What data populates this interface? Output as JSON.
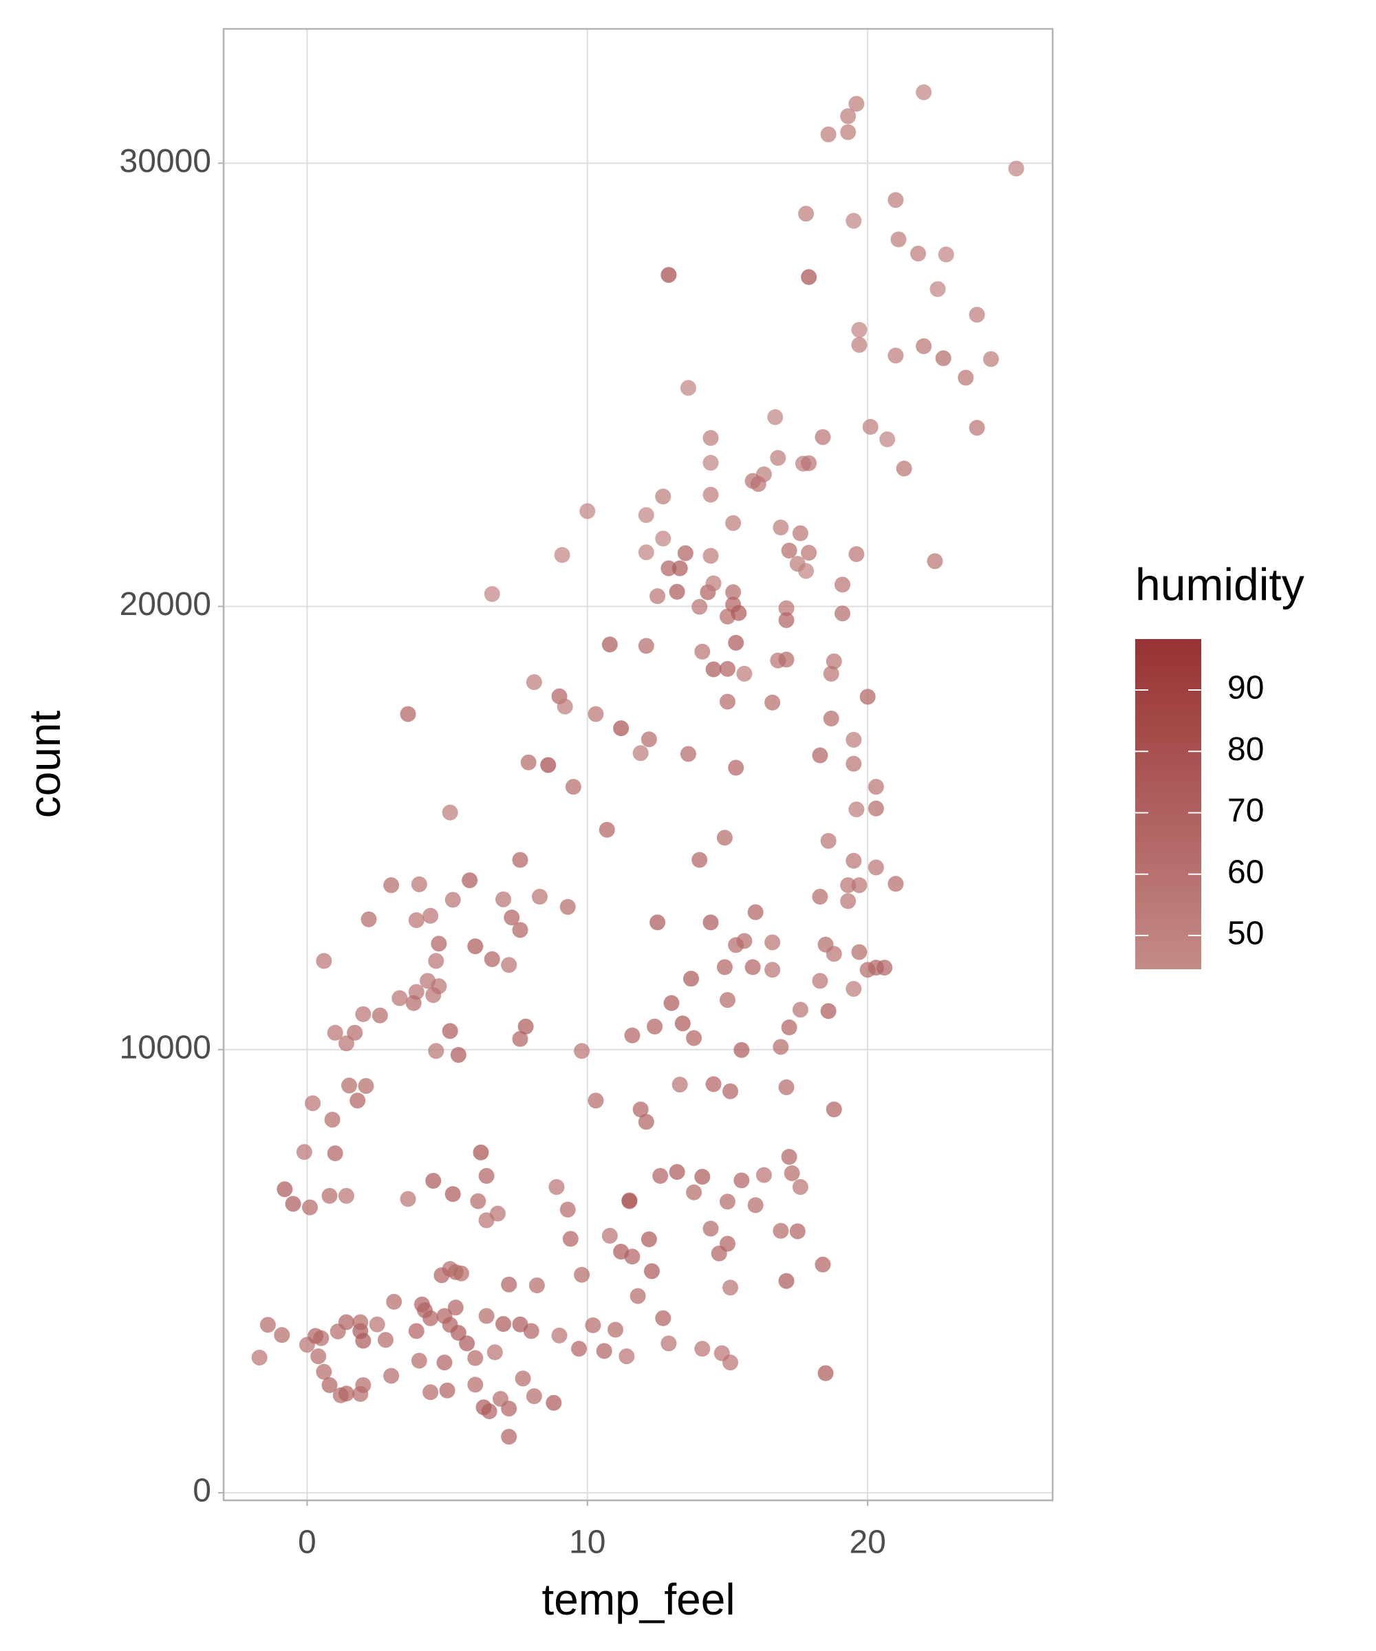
{
  "chart_data": {
    "type": "scatter",
    "x_label": "temp_feel",
    "y_label": "count",
    "xlim": [
      -2.98,
      26.6
    ],
    "ylim": [
      -170,
      33030
    ],
    "xticks": [
      0,
      10,
      20
    ],
    "yticks": [
      0,
      10000,
      20000,
      30000
    ],
    "grid": true,
    "x": [
      22.0,
      19.6,
      19.3,
      19.3,
      18.6,
      25.3,
      21.0,
      19.5,
      17.8,
      21.1,
      22.8,
      21.8,
      12.9,
      17.9,
      22.5,
      23.9,
      19.7,
      19.7,
      21.0,
      22.0,
      22.7,
      24.4,
      23.5,
      13.6,
      16.7,
      20.1,
      14.4,
      18.4,
      20.7,
      23.9,
      16.8,
      17.7,
      17.9,
      14.4,
      21.3,
      16.3,
      15.9,
      16.1,
      14.4,
      12.7,
      10.0,
      12.1,
      15.2,
      16.9,
      17.6,
      12.7,
      12.1,
      9.1,
      13.5,
      14.4,
      17.2,
      17.9,
      19.6,
      22.4,
      12.9,
      13.3,
      17.5,
      17.8,
      12.5,
      13.2,
      14.3,
      14.5,
      15.2,
      15.2,
      6.6,
      19.1,
      14.0,
      17.1,
      15.0,
      15.4,
      17.1,
      19.1,
      10.8,
      12.1,
      15.3,
      14.1,
      16.8,
      17.1,
      14.5,
      15.0,
      15.6,
      18.8,
      18.7,
      8.1,
      9.0,
      9.2,
      15.0,
      16.6,
      20.0,
      3.6,
      10.3,
      11.2,
      12.2,
      18.7,
      19.5,
      11.9,
      13.6,
      18.3,
      19.5,
      7.9,
      8.6,
      15.3,
      9.5,
      20.3,
      5.1,
      19.6,
      20.3,
      10.7,
      14.9,
      18.6,
      19.5,
      20.3,
      7.6,
      14.0,
      5.8,
      3.0,
      4.0,
      8.3,
      21.0,
      19.3,
      19.7,
      18.3,
      19.3,
      5.2,
      7.0,
      9.3,
      4.4,
      2.2,
      3.9,
      7.3,
      12.5,
      14.4,
      16.0,
      7.6,
      6.0,
      4.7,
      18.5,
      15.3,
      15.6,
      16.6,
      19.7,
      4.6,
      6.6,
      18.8,
      7.2,
      14.9,
      15.9,
      16.6,
      20.0,
      20.3,
      20.6,
      4.3,
      18.3,
      13.7,
      3.9,
      4.7,
      0.6,
      19.5,
      4.5,
      3.3,
      18.6,
      3.8,
      15.0,
      13.0,
      17.6,
      2.0,
      1.7,
      12.4,
      2.6,
      5.1,
      1.0,
      1.4,
      4.6,
      5.4,
      7.6,
      13.4,
      13.8,
      15.5,
      11.6,
      7.8,
      9.8,
      16.9,
      17.2,
      1.5,
      2.1,
      1.8,
      0.2,
      0.9,
      10.3,
      11.9,
      12.1,
      13.3,
      14.5,
      15.1,
      17.1,
      18.8,
      1.0,
      6.2,
      0.8,
      -0.1,
      4.5,
      5.2,
      6.4,
      8.9,
      11.5,
      12.6,
      13.2,
      14.1,
      15.5,
      16.3,
      17.2,
      17.3,
      17.6,
      0.1,
      1.4,
      3.6,
      6.1,
      9.3,
      11.5,
      13.8,
      15.0,
      16.0,
      -0.8,
      -0.5,
      6.4,
      6.8,
      14.4,
      16.9,
      17.5,
      9.4,
      10.8,
      12.2,
      15.0,
      18.4,
      5.1,
      4.8,
      5.5,
      7.2,
      9.8,
      11.2,
      12.3,
      14.7,
      17.1,
      3.1,
      4.1,
      4.9,
      4.4,
      5.1,
      5.4,
      6.4,
      7.0,
      7.6,
      1.9,
      1.4,
      1.9,
      2.5,
      2.8,
      3.9,
      4.2,
      4.9,
      6.0,
      5.7,
      8.0,
      9.0,
      10.6,
      12.9,
      15.1,
      -1.4,
      -1.7,
      -0.9,
      0.0,
      0.5,
      0.4,
      1.1,
      0.6,
      0.8,
      1.2,
      1.9,
      3.0,
      5.0,
      6.5,
      7.2,
      8.1,
      14.1,
      14.8,
      9.7,
      11.4,
      12.7,
      15.1,
      18.5,
      6.0,
      2.0,
      1.4,
      4.0,
      7.7,
      8.8,
      6.3,
      6.9,
      7.2,
      4.4,
      6.7,
      10.2,
      11.6,
      11.0,
      11.8,
      2.0,
      0.3,
      5.3,
      5.3,
      8.2
    ],
    "values": [
      31600,
      31340,
      31060,
      30700,
      30650,
      29880,
      29170,
      28700,
      28860,
      28280,
      27940,
      27960,
      27480,
      27430,
      27160,
      26580,
      26240,
      25900,
      25660,
      25870,
      25600,
      25580,
      25160,
      24930,
      24270,
      24050,
      23800,
      23820,
      23770,
      24030,
      23350,
      23220,
      23230,
      23240,
      23110,
      22980,
      22830,
      22760,
      22520,
      22480,
      22150,
      22060,
      21880,
      21780,
      21650,
      21530,
      21220,
      21160,
      21200,
      21140,
      21260,
      21210,
      21180,
      21020,
      20860,
      20860,
      20960,
      20800,
      20230,
      20330,
      20320,
      20520,
      20320,
      20040,
      20280,
      20490,
      19990,
      19960,
      19770,
      19850,
      19690,
      19840,
      19140,
      19110,
      19180,
      18980,
      18780,
      18800,
      18580,
      18590,
      18480,
      18760,
      18480,
      18290,
      17970,
      17740,
      17850,
      17830,
      17960,
      17570,
      17570,
      17250,
      17000,
      17470,
      16990,
      16690,
      16670,
      16640,
      16450,
      16480,
      16420,
      16360,
      15930,
      15930,
      15350,
      15420,
      15440,
      14960,
      14780,
      14710,
      14260,
      14110,
      14280,
      14280,
      13820,
      13710,
      13730,
      13450,
      13740,
      13710,
      13710,
      13450,
      13350,
      13380,
      13390,
      13220,
      13020,
      12940,
      12920,
      12980,
      12870,
      12870,
      13100,
      12700,
      12330,
      12390,
      12370,
      12360,
      12450,
      12420,
      12200,
      12000,
      12040,
      12160,
      11910,
      11860,
      11860,
      11800,
      11800,
      11850,
      11850,
      11550,
      11550,
      11600,
      11300,
      11430,
      12000,
      11370,
      11230,
      11160,
      10870,
      11050,
      11120,
      11050,
      10900,
      10800,
      10380,
      10520,
      10770,
      10420,
      10380,
      10140,
      9970,
      9880,
      10240,
      10590,
      10260,
      9990,
      10320,
      10520,
      9970,
      10060,
      10500,
      9190,
      9180,
      8850,
      8790,
      8420,
      8850,
      8650,
      8370,
      9210,
      9220,
      9060,
      9150,
      8650,
      7660,
      7680,
      6700,
      7690,
      7040,
      6740,
      7150,
      6900,
      6600,
      7150,
      7240,
      7130,
      7050,
      7170,
      7580,
      7210,
      6900,
      6440,
      6700,
      6630,
      6580,
      6390,
      6580,
      6780,
      6570,
      6490,
      6850,
      6520,
      6150,
      6300,
      5960,
      5910,
      5900,
      5730,
      5800,
      5720,
      5620,
      5150,
      5050,
      4910,
      4950,
      4700,
      4920,
      5440,
      5000,
      5400,
      4780,
      4310,
      4250,
      3990,
      3940,
      3790,
      3610,
      3990,
      3810,
      3800,
      3650,
      3850,
      3850,
      3800,
      3450,
      3650,
      4120,
      2940,
      3040,
      3370,
      3650,
      3550,
      3200,
      3370,
      2940,
      3790,
      3050,
      3560,
      3340,
      3490,
      3080,
      3640,
      2730,
      2430,
      2200,
      2230,
      2640,
      2310,
      1840,
      1900,
      2180,
      3250,
      3150,
      3250,
      3080,
      3940,
      4630,
      2700,
      2440,
      2430,
      2240,
      2980,
      2580,
      2030,
      1930,
      2120,
      1265,
      2270,
      3170,
      3780,
      5330,
      3680,
      4440,
      3430,
      3540,
      4980,
      4180,
      4680
    ],
    "humidity": [
      50,
      55,
      55,
      55,
      55,
      50,
      55,
      50,
      55,
      55,
      50,
      55,
      85,
      80,
      50,
      55,
      50,
      55,
      55,
      60,
      65,
      55,
      60,
      50,
      50,
      55,
      55,
      60,
      50,
      60,
      55,
      55,
      60,
      50,
      60,
      55,
      60,
      60,
      55,
      55,
      50,
      50,
      55,
      55,
      60,
      50,
      50,
      50,
      70,
      55,
      65,
      60,
      60,
      60,
      70,
      75,
      55,
      50,
      60,
      75,
      70,
      55,
      65,
      70,
      50,
      60,
      60,
      60,
      65,
      75,
      70,
      65,
      75,
      65,
      75,
      60,
      60,
      65,
      75,
      70,
      55,
      60,
      60,
      55,
      70,
      55,
      65,
      65,
      70,
      70,
      60,
      80,
      65,
      65,
      55,
      55,
      65,
      70,
      60,
      65,
      85,
      70,
      65,
      60,
      55,
      55,
      65,
      70,
      65,
      60,
      60,
      60,
      70,
      70,
      75,
      65,
      60,
      60,
      65,
      60,
      60,
      65,
      60,
      60,
      60,
      65,
      60,
      65,
      60,
      70,
      75,
      75,
      70,
      70,
      75,
      70,
      65,
      65,
      65,
      60,
      65,
      60,
      70,
      60,
      60,
      70,
      70,
      60,
      65,
      70,
      70,
      60,
      60,
      75,
      60,
      60,
      60,
      55,
      60,
      60,
      75,
      65,
      65,
      75,
      60,
      60,
      65,
      70,
      65,
      75,
      60,
      60,
      60,
      75,
      70,
      75,
      70,
      75,
      70,
      75,
      60,
      65,
      70,
      65,
      65,
      70,
      60,
      65,
      65,
      70,
      70,
      60,
      70,
      70,
      65,
      70,
      70,
      80,
      65,
      60,
      75,
      75,
      70,
      60,
      70,
      70,
      75,
      75,
      70,
      60,
      70,
      65,
      60,
      65,
      60,
      60,
      65,
      65,
      75,
      65,
      65,
      65,
      75,
      75,
      60,
      60,
      65,
      65,
      70,
      70,
      60,
      75,
      70,
      70,
      65,
      70,
      65,
      70,
      65,
      75,
      75,
      70,
      75,
      65,
      70,
      70,
      70,
      70,
      75,
      65,
      75,
      75,
      75,
      70,
      65,
      60,
      65,
      70,
      70,
      70,
      65,
      75,
      70,
      60,
      70,
      60,
      60,
      65,
      60,
      65,
      60,
      65,
      65,
      65,
      65,
      70,
      65,
      65,
      65,
      70,
      70,
      70,
      65,
      60,
      60,
      70,
      60,
      70,
      60,
      75,
      65,
      65,
      70,
      65,
      65,
      75,
      75,
      65,
      70,
      65,
      60,
      65,
      70,
      65,
      65,
      75,
      70,
      65,
      70,
      65
    ],
    "colorbar": {
      "title": "humidity",
      "lim": [
        44.5,
        98.3
      ],
      "ticks": [
        50,
        60,
        70,
        80,
        90
      ],
      "colors": [
        "#c48b88",
        "#983232"
      ]
    },
    "point_opacity": 0.7,
    "panel_border_color": "#b3b3b3",
    "grid_color": "#dedede"
  }
}
